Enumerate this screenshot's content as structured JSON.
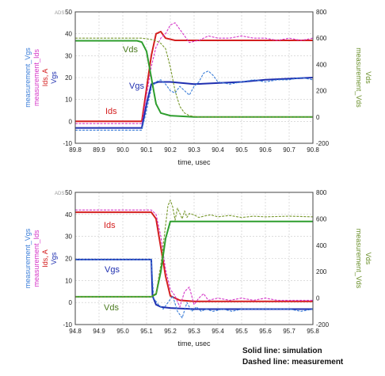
{
  "chart_data": [
    {
      "type": "line",
      "badge": "ADS",
      "xlabel": "time, usec",
      "xlim": [
        89.8,
        90.8
      ],
      "x_ticks": [
        "89.8",
        "89.9",
        "90.0",
        "90.1",
        "90.2",
        "90.3",
        "90.4",
        "90.5",
        "90.6",
        "90.7",
        "90.8"
      ],
      "ylim_left": [
        -10,
        50
      ],
      "y_ticks_left": [
        "50",
        "40",
        "30",
        "20",
        "10",
        "0",
        "-10"
      ],
      "ylim_right": [
        -200,
        800
      ],
      "y_ticks_right": [
        "800",
        "600",
        "400",
        "200",
        "0",
        "-200"
      ],
      "left_axis_labels": [
        {
          "text": "measurement_Vgs",
          "color": "#3a7dd8"
        },
        {
          "text": "measurement_Ids",
          "color": "#d535c8"
        },
        {
          "text": "Ids, A",
          "color": "#d41f1f"
        },
        {
          "text": "Vgs",
          "color": "#1f2fb0"
        }
      ],
      "right_axis_labels": [
        {
          "text": "measurement_Vds",
          "color": "#6a8f2a"
        },
        {
          "text": "Vds",
          "color": "#6a8f2a"
        }
      ],
      "annotations": [
        {
          "text": "Vds",
          "color": "#4a7a1e"
        },
        {
          "text": "Vgs",
          "color": "#1f2fb0"
        },
        {
          "text": "Ids",
          "color": "#d41f1f"
        }
      ],
      "series": [
        {
          "name": "Ids",
          "axis": "left",
          "style": "solid",
          "color": "#d41f1f",
          "x": [
            89.8,
            90.08,
            90.1,
            90.12,
            90.14,
            90.16,
            90.18,
            90.22,
            90.3,
            90.5,
            90.8
          ],
          "y": [
            0,
            0,
            15,
            30,
            40,
            41,
            38,
            37,
            37,
            37,
            37
          ]
        },
        {
          "name": "measurement_Ids",
          "axis": "left",
          "style": "dashed",
          "color": "#d535c8",
          "x": [
            89.8,
            90.08,
            90.1,
            90.12,
            90.14,
            90.16,
            90.18,
            90.2,
            90.22,
            90.24,
            90.26,
            90.28,
            90.32,
            90.36,
            90.4,
            90.45,
            90.5,
            90.55,
            90.6,
            90.65,
            90.7,
            90.75,
            90.8
          ],
          "y": [
            -1,
            -1,
            12,
            25,
            34,
            38,
            40,
            44,
            45,
            42,
            39,
            36,
            37,
            39,
            38,
            38,
            39,
            38,
            38,
            37,
            38,
            37,
            38
          ]
        },
        {
          "name": "Vgs",
          "axis": "left",
          "style": "solid",
          "color": "#1f2fb0",
          "x": [
            89.8,
            90.08,
            90.1,
            90.12,
            90.15,
            90.2,
            90.3,
            90.4,
            90.5,
            90.6,
            90.7,
            90.8
          ],
          "y": [
            -3,
            -3,
            8,
            17,
            18,
            18,
            17,
            17.5,
            18,
            19,
            19.5,
            20
          ]
        },
        {
          "name": "measurement_Vgs",
          "axis": "left",
          "style": "dashed",
          "color": "#3a7dd8",
          "x": [
            89.8,
            90.08,
            90.1,
            90.12,
            90.14,
            90.16,
            90.18,
            90.2,
            90.22,
            90.24,
            90.26,
            90.28,
            90.3,
            90.32,
            90.34,
            90.36,
            90.38,
            90.4,
            90.45,
            90.5,
            90.55,
            90.6,
            90.65,
            90.7,
            90.75,
            90.8
          ],
          "y": [
            -4,
            -4,
            5,
            15,
            18,
            19,
            17,
            14,
            13,
            16,
            14,
            12,
            16,
            18,
            22,
            23,
            21,
            18,
            17,
            18,
            19,
            18,
            19,
            19,
            20,
            19
          ]
        },
        {
          "name": "Vds",
          "axis": "right",
          "style": "solid",
          "color": "#2e9e2e",
          "x": [
            89.8,
            90.06,
            90.08,
            90.1,
            90.12,
            90.14,
            90.16,
            90.2,
            90.3,
            90.5,
            90.8
          ],
          "y": [
            580,
            580,
            570,
            500,
            300,
            100,
            30,
            10,
            0,
            0,
            0
          ]
        },
        {
          "name": "measurement_Vds",
          "axis": "right",
          "style": "dashed",
          "color": "#7a9a30",
          "x": [
            89.8,
            90.0,
            90.08,
            90.12,
            90.14,
            90.16,
            90.18,
            90.2,
            90.22,
            90.24,
            90.26,
            90.28,
            90.32,
            90.4,
            90.5,
            90.6,
            90.7,
            90.8
          ],
          "y": [
            600,
            600,
            600,
            590,
            580,
            560,
            520,
            380,
            200,
            80,
            30,
            10,
            0,
            0,
            0,
            0,
            0,
            0
          ]
        }
      ]
    },
    {
      "type": "line",
      "badge": "ADS",
      "xlabel": "time, usec",
      "xlim": [
        94.8,
        95.8
      ],
      "x_ticks": [
        "94.8",
        "94.9",
        "95.0",
        "95.1",
        "95.2",
        "95.3",
        "95.4",
        "95.5",
        "95.6",
        "95.7",
        "95.8"
      ],
      "ylim_left": [
        -10,
        50
      ],
      "y_ticks_left": [
        "50",
        "40",
        "30",
        "20",
        "10",
        "0",
        "-10"
      ],
      "ylim_right": [
        -200,
        800
      ],
      "y_ticks_right": [
        "800",
        "600",
        "400",
        "200",
        "0",
        "-200"
      ],
      "left_axis_labels": [
        {
          "text": "measurement_Vgs",
          "color": "#3a7dd8"
        },
        {
          "text": "measurement_Ids",
          "color": "#d535c8"
        },
        {
          "text": "Ids, A",
          "color": "#d41f1f"
        },
        {
          "text": "Vgs",
          "color": "#1f2fb0"
        }
      ],
      "right_axis_labels": [
        {
          "text": "measurement_Vds",
          "color": "#6a8f2a"
        },
        {
          "text": "Vds",
          "color": "#6a8f2a"
        }
      ],
      "annotations": [
        {
          "text": "Ids",
          "color": "#d41f1f"
        },
        {
          "text": "Vgs",
          "color": "#1f2fb0"
        },
        {
          "text": "Vds",
          "color": "#4a7a1e"
        }
      ],
      "series": [
        {
          "name": "Ids",
          "axis": "left",
          "style": "solid",
          "color": "#d41f1f",
          "x": [
            94.8,
            95.12,
            95.14,
            95.16,
            95.18,
            95.2,
            95.24,
            95.3,
            95.5,
            95.8
          ],
          "y": [
            41,
            41,
            38,
            25,
            12,
            3,
            1,
            0.5,
            0.5,
            0.5
          ]
        },
        {
          "name": "measurement_Ids",
          "axis": "left",
          "style": "dashed",
          "color": "#d535c8",
          "x": [
            94.8,
            95.0,
            95.12,
            95.14,
            95.16,
            95.18,
            95.2,
            95.22,
            95.24,
            95.26,
            95.28,
            95.3,
            95.32,
            95.34,
            95.36,
            95.4,
            95.45,
            95.5,
            95.55,
            95.6,
            95.65,
            95.7,
            95.8
          ],
          "y": [
            42,
            42,
            42,
            40,
            30,
            15,
            6,
            3,
            -2,
            5,
            7,
            -1,
            2,
            4,
            1,
            2,
            1,
            2,
            1,
            2,
            1,
            1,
            1
          ]
        },
        {
          "name": "Vgs",
          "axis": "left",
          "style": "solid",
          "color": "#1f2fb0",
          "x": [
            94.8,
            95.12,
            95.125,
            95.14,
            95.16,
            95.2,
            95.3,
            95.5,
            95.8
          ],
          "y": [
            19.5,
            19.5,
            3,
            -1,
            -2,
            -2.5,
            -3,
            -3,
            -3
          ]
        },
        {
          "name": "measurement_Vgs",
          "axis": "left",
          "style": "dashed",
          "color": "#3a7dd8",
          "x": [
            94.8,
            95.12,
            95.13,
            95.15,
            95.17,
            95.19,
            95.21,
            95.23,
            95.25,
            95.27,
            95.29,
            95.31,
            95.33,
            95.35,
            95.38,
            95.42,
            95.46,
            95.5,
            95.55,
            95.6,
            95.65,
            95.7,
            95.75,
            95.8
          ],
          "y": [
            19.5,
            19.5,
            2,
            -1,
            -3,
            0,
            3,
            -4,
            -7,
            0,
            -4,
            -2,
            -4,
            -3,
            -4,
            -3,
            -4,
            -3,
            -3,
            -3,
            -3,
            -3,
            -4,
            -3
          ]
        },
        {
          "name": "Vds",
          "axis": "right",
          "style": "solid",
          "color": "#2e9e2e",
          "x": [
            94.8,
            95.12,
            95.14,
            95.16,
            95.18,
            95.2,
            95.3,
            95.5,
            95.8
          ],
          "y": [
            10,
            10,
            30,
            200,
            450,
            580,
            580,
            580,
            580
          ]
        },
        {
          "name": "measurement_Vds",
          "axis": "right",
          "style": "dashed",
          "color": "#7a9a30",
          "x": [
            94.8,
            95.0,
            95.12,
            95.14,
            95.16,
            95.18,
            95.19,
            95.2,
            95.21,
            95.22,
            95.23,
            95.24,
            95.25,
            95.26,
            95.27,
            95.28,
            95.3,
            95.32,
            95.34,
            95.37,
            95.4,
            95.45,
            95.5,
            95.55,
            95.6,
            95.7,
            95.8
          ],
          "y": [
            10,
            10,
            10,
            40,
            250,
            550,
            700,
            740,
            690,
            590,
            680,
            640,
            600,
            660,
            610,
            640,
            630,
            610,
            620,
            630,
            615,
            625,
            610,
            620,
            615,
            620,
            615
          ]
        }
      ]
    }
  ],
  "notes": {
    "solid": "Solid line:      simulation",
    "dashed": "Dashed line: measurement"
  }
}
